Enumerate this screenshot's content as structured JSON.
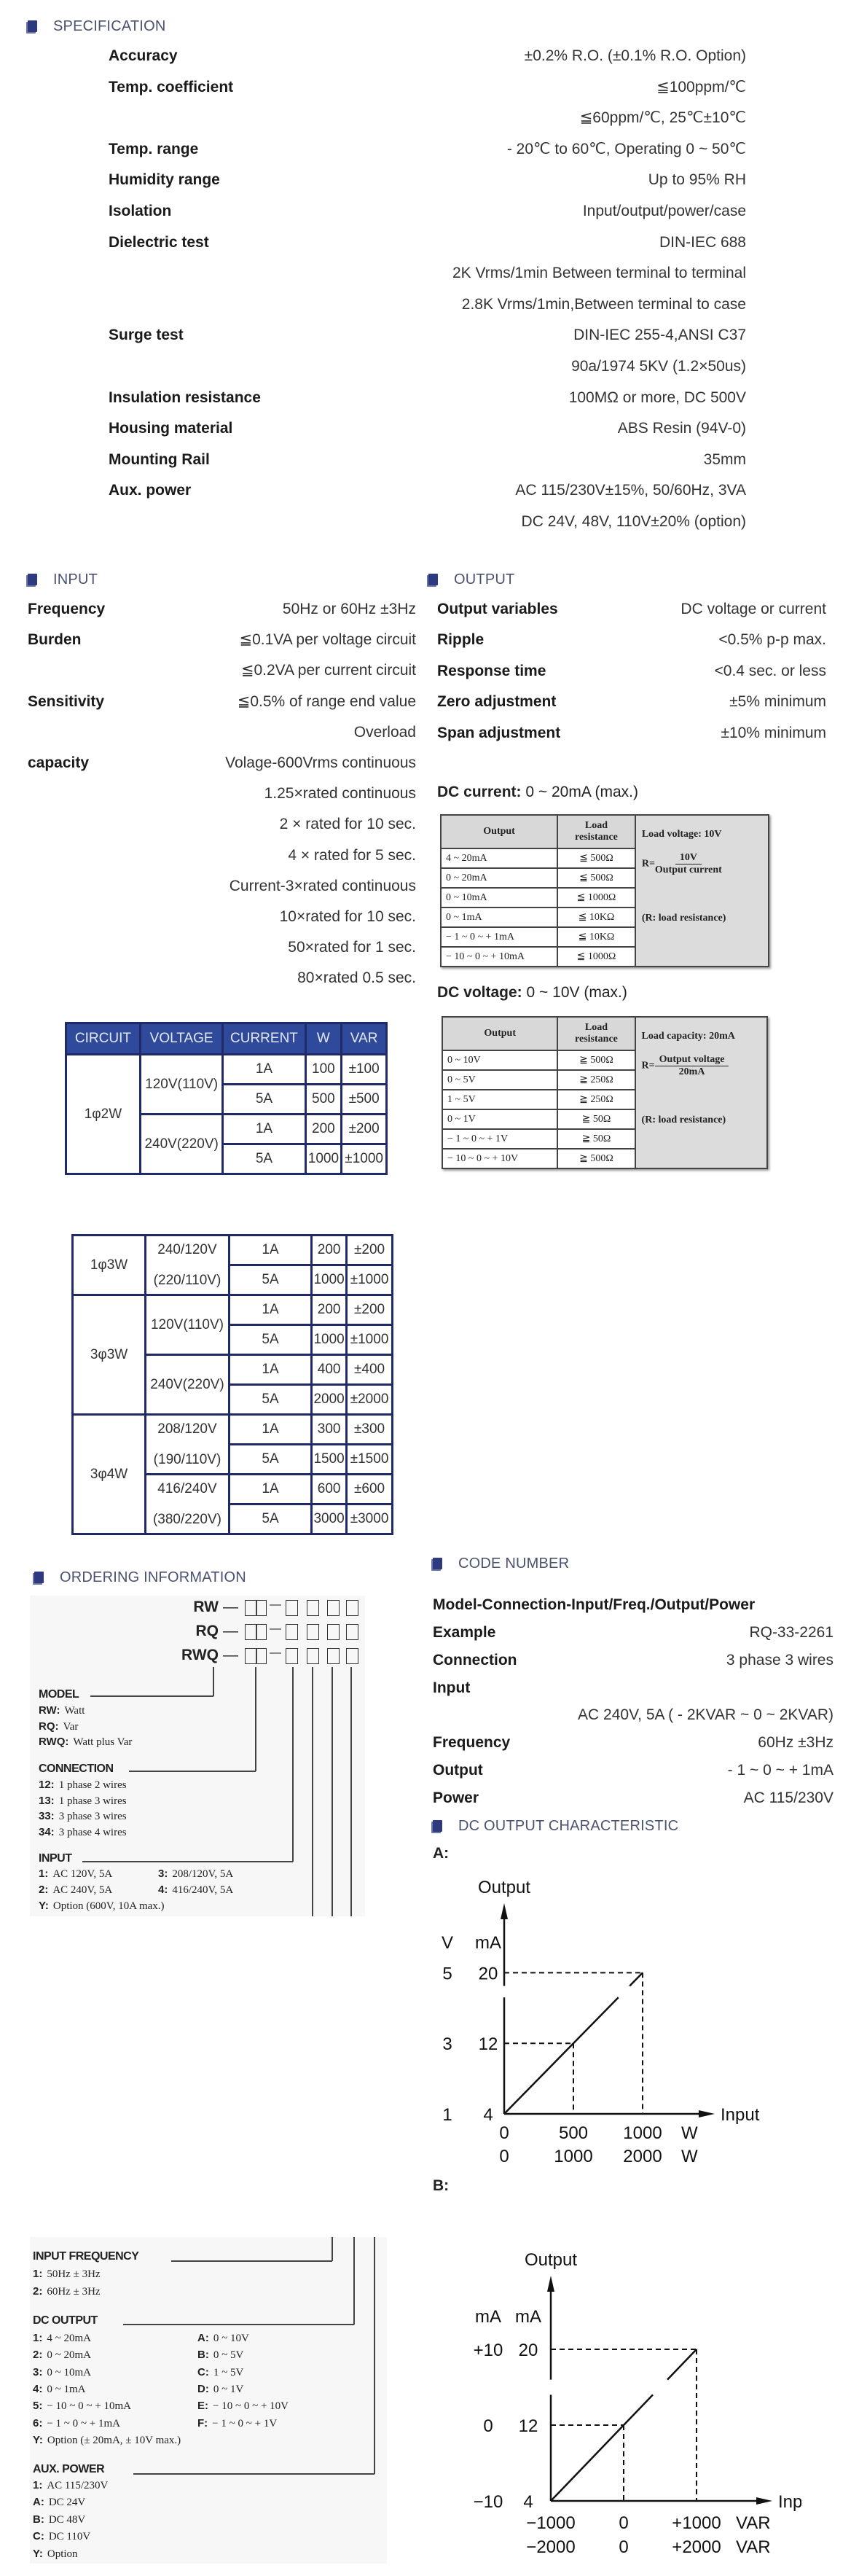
{
  "colors": {
    "heading": "#4a5270",
    "marker": "#2e3a80",
    "table_header": "#2f4a9a",
    "table_border": "#1f2a66"
  },
  "specification": {
    "title": "SPECIFICATION",
    "rows": [
      {
        "label": "Accuracy",
        "value": "±0.2% R.O. (±0.1% R.O. Option)"
      },
      {
        "label": "Temp. coefficient",
        "value": "≦100ppm/℃"
      },
      {
        "value": "≦60ppm/℃, 25℃±10℃"
      },
      {
        "label": "Temp. range",
        "value": "- 20℃ to 60℃, Operating 0 ~ 50℃"
      },
      {
        "label": "Humidity range",
        "value": "Up to 95% RH"
      },
      {
        "label": "Isolation",
        "value": "Input/output/power/case"
      },
      {
        "label": "Dielectric test",
        "value": "DIN-IEC 688"
      },
      {
        "value": "2K Vrms/1min Between terminal to terminal"
      },
      {
        "value": "2.8K Vrms/1min,Between terminal to case"
      },
      {
        "label": "Surge test",
        "value": "DIN-IEC 255-4,ANSI C37"
      },
      {
        "value": "90a/1974   5KV (1.2×50us)"
      },
      {
        "label": "Insulation resistance",
        "value": "100MΩ or more, DC 500V"
      },
      {
        "label": "Housing material",
        "value": "ABS Resin (94V-0)"
      },
      {
        "label": "Mounting Rail",
        "value": "35mm"
      },
      {
        "label": "Aux. power",
        "value": "AC 115/230V±15%, 50/60Hz, 3VA"
      },
      {
        "value": "DC 24V, 48V, 110V±20% (option)"
      }
    ]
  },
  "input": {
    "title": "INPUT",
    "rows": [
      {
        "label": "Frequency",
        "value": "50Hz or 60Hz ±3Hz"
      },
      {
        "label": "Burden",
        "value": "≦0.1VA per voltage circuit"
      },
      {
        "value": "≦0.2VA per current circuit"
      },
      {
        "label": "Sensitivity",
        "value": "≦0.5% of range end value"
      },
      {
        "value": "Overload"
      },
      {
        "label": "capacity",
        "value": "Volage-600Vrms continuous"
      },
      {
        "value": "1.25×rated continuous"
      },
      {
        "value": "2 × rated for 10 sec."
      },
      {
        "value": "4 × rated for 5 sec."
      },
      {
        "value": "Current-3×rated continuous"
      },
      {
        "value": "10×rated for 10 sec."
      },
      {
        "value": "50×rated for 1 sec."
      },
      {
        "value": "80×rated 0.5 sec."
      }
    ]
  },
  "output": {
    "title": "OUTPUT",
    "rows": [
      {
        "label": "Output variables",
        "value": "DC voltage or current"
      },
      {
        "label": "Ripple",
        "value": "<0.5% p-p max."
      },
      {
        "label": "Response time",
        "value": "<0.4 sec. or less"
      },
      {
        "label": "Zero adjustment",
        "value": "±5% minimum"
      },
      {
        "label": "Span adjustment",
        "value": "±10% minimum"
      }
    ],
    "dc_current": {
      "label": "DC current:",
      "range": "0 ~ 20mA (max.)",
      "headers": [
        "Output",
        "Load resistance"
      ],
      "rows": [
        [
          "4 ~ 20mA",
          "≦ 500Ω"
        ],
        [
          "0 ~ 20mA",
          "≦ 500Ω"
        ],
        [
          "0 ~ 10mA",
          "≦ 1000Ω"
        ],
        [
          "0 ~ 1mA",
          "≦ 10KΩ"
        ],
        [
          "− 1 ~ 0 ~ + 1mA",
          "≦ 10KΩ"
        ],
        [
          "− 10 ~ 0 ~ + 10mA",
          "≦ 1000Ω"
        ]
      ],
      "note_top": "Load voltage: 10V",
      "formula_lhs": "R=",
      "formula_num": "10V",
      "formula_den": "Output current",
      "note_bottom": "(R: load resistance)"
    },
    "dc_voltage": {
      "label": "DC voltage:",
      "range": "0 ~ 10V (max.)",
      "headers": [
        "Output",
        "Load resistance"
      ],
      "rows": [
        [
          "0 ~ 10V",
          "≧ 500Ω"
        ],
        [
          "0 ~ 5V",
          "≧ 250Ω"
        ],
        [
          "1 ~ 5V",
          "≧ 250Ω"
        ],
        [
          "0 ~ 1V",
          "≧ 50Ω"
        ],
        [
          "− 1 ~ 0 ~ + 1V",
          "≧ 50Ω"
        ],
        [
          "− 10 ~ 0 ~ + 10V",
          "≧ 500Ω"
        ]
      ],
      "note_top": "Load capacity: 20mA",
      "formula_lhs": "R=",
      "formula_num": "Output voltage",
      "formula_den": "20mA",
      "note_bottom": "(R: load resistance)"
    }
  },
  "circuit_table": {
    "headers": [
      "CIRCUIT",
      "VOLTAGE",
      "CURRENT",
      "W",
      "VAR"
    ],
    "groups": [
      {
        "circuit": "1φ2W",
        "voltages": [
          {
            "voltage": "120V(110V)",
            "rows": [
              {
                "current": "1A",
                "w": "100",
                "var": "±100"
              },
              {
                "current": "5A",
                "w": "500",
                "var": "±500"
              }
            ]
          },
          {
            "voltage": "240V(220V)",
            "rows": [
              {
                "current": "1A",
                "w": "200",
                "var": "±200"
              },
              {
                "current": "5A",
                "w": "1000",
                "var": "±1000"
              }
            ]
          }
        ]
      }
    ]
  },
  "circuit_table_2": {
    "groups": [
      {
        "circuit": "1φ3W",
        "voltages": [
          {
            "voltage": "240/120V",
            "voltage_alt": "(220/110V)",
            "rows": [
              {
                "current": "1A",
                "w": "200",
                "var": "±200"
              },
              {
                "current": "5A",
                "w": "1000",
                "var": "±1000"
              }
            ]
          }
        ]
      },
      {
        "circuit": "3φ3W",
        "voltages": [
          {
            "voltage": "120V(110V)",
            "rows": [
              {
                "current": "1A",
                "w": "200",
                "var": "±200"
              },
              {
                "current": "5A",
                "w": "1000",
                "var": "±1000"
              }
            ]
          },
          {
            "voltage": "240V(220V)",
            "rows": [
              {
                "current": "1A",
                "w": "400",
                "var": "±400"
              },
              {
                "current": "5A",
                "w": "2000",
                "var": "±2000"
              }
            ]
          }
        ]
      },
      {
        "circuit": "3φ4W",
        "voltages": [
          {
            "voltage": "208/120V",
            "voltage_alt": "(190/110V)",
            "rows": [
              {
                "current": "1A",
                "w": "300",
                "var": "±300"
              },
              {
                "current": "5A",
                "w": "1500",
                "var": "±1500"
              }
            ]
          },
          {
            "voltage": "416/240V",
            "voltage_alt": "(380/220V)",
            "rows": [
              {
                "current": "1A",
                "w": "600",
                "var": "±600"
              },
              {
                "current": "5A",
                "w": "3000",
                "var": "±3000"
              }
            ]
          }
        ]
      }
    ]
  },
  "ordering": {
    "title": "ORDERING INFORMATION",
    "models": [
      "RW",
      "RQ",
      "RWQ"
    ],
    "dash": "—",
    "model": {
      "title": "MODEL",
      "items": [
        {
          "k": "RW:",
          "v": "Watt"
        },
        {
          "k": "RQ:",
          "v": "Var"
        },
        {
          "k": "RWQ:",
          "v": "Watt plus Var"
        }
      ]
    },
    "connection": {
      "title": "CONNECTION",
      "items": [
        {
          "k": "12:",
          "v": "1 phase 2 wires"
        },
        {
          "k": "13:",
          "v": "1 phase 3 wires"
        },
        {
          "k": "33:",
          "v": "3 phase 3 wires"
        },
        {
          "k": "34:",
          "v": "3 phase 4 wires"
        }
      ]
    },
    "input": {
      "title": "INPUT",
      "items": [
        {
          "k": "1:",
          "v": "AC 120V, 5A"
        },
        {
          "k": "3:",
          "v": "208/120V, 5A"
        },
        {
          "k": "2:",
          "v": "AC 240V, 5A"
        },
        {
          "k": "4:",
          "v": "416/240V, 5A"
        },
        {
          "k": "Y:",
          "v": "Option (600V, 10A max.)"
        }
      ]
    },
    "input_frequency": {
      "title": "INPUT FREQUENCY",
      "items": [
        {
          "k": "1:",
          "v": "50Hz ± 3Hz"
        },
        {
          "k": "2:",
          "v": "60Hz ± 3Hz"
        }
      ]
    },
    "dc_output": {
      "title": "DC OUTPUT",
      "items": [
        {
          "k": "1:",
          "v": "4 ~ 20mA"
        },
        {
          "k": "A:",
          "v": "0 ~ 10V"
        },
        {
          "k": "2:",
          "v": "0 ~ 20mA"
        },
        {
          "k": "B:",
          "v": "0 ~ 5V"
        },
        {
          "k": "3:",
          "v": "0 ~ 10mA"
        },
        {
          "k": "C:",
          "v": "1 ~ 5V"
        },
        {
          "k": "4:",
          "v": "0 ~ 1mA"
        },
        {
          "k": "D:",
          "v": "0 ~ 1V"
        },
        {
          "k": "5:",
          "v": "− 10 ~ 0 ~ + 10mA"
        },
        {
          "k": "E:",
          "v": "− 10 ~ 0 ~ + 10V"
        },
        {
          "k": "6:",
          "v": "− 1 ~ 0 ~ + 1mA"
        },
        {
          "k": "F:",
          "v": "− 1 ~ 0 ~ + 1V"
        },
        {
          "k": "Y:",
          "v": "Option (± 20mA, ± 10V max.)"
        }
      ]
    },
    "aux_power": {
      "title": "AUX.  POWER",
      "items": [
        {
          "k": "1:",
          "v": "AC 115/230V"
        },
        {
          "k": "A:",
          "v": "DC 24V"
        },
        {
          "k": "B:",
          "v": "DC 48V"
        },
        {
          "k": "C:",
          "v": "DC 110V"
        },
        {
          "k": "Y:",
          "v": "Option"
        }
      ]
    }
  },
  "code_number": {
    "title": "CODE NUMBER",
    "format": "Model-Connection-Input/Freq./Output/Power",
    "rows": [
      {
        "label": "Example",
        "value": "RQ-33-2261"
      },
      {
        "label": "Connection",
        "value": "3 phase 3 wires"
      },
      {
        "label": "Input"
      },
      {
        "value": "AC 240V, 5A ( - 2KVAR ~ 0 ~ 2KVAR)"
      },
      {
        "label": "Frequency",
        "value": "60Hz ±3Hz"
      },
      {
        "label": "Output",
        "value": "- 1 ~ 0 ~ + 1mA"
      },
      {
        "label": "Power",
        "value": "AC 115/230V"
      }
    ]
  },
  "dc_output_characteristic": {
    "title": "DC OUTPUT CHARACTERISTIC"
  },
  "chart_data": [
    {
      "type": "line",
      "label": "A:",
      "y_label": "Output",
      "x_label": "Input",
      "y_units": [
        "V",
        "mA"
      ],
      "y_ticks": [
        4,
        12,
        20
      ],
      "y_tick_labels": [
        [
          "1",
          "3",
          "5"
        ],
        [
          "4",
          "12",
          "20"
        ]
      ],
      "x_unit": "W",
      "x_ticks": [
        0,
        500,
        1000
      ],
      "x_tick_labels": [
        [
          "0",
          "500",
          "1000"
        ],
        [
          "0",
          "1000",
          "2000"
        ]
      ],
      "points": [
        [
          0,
          4
        ],
        [
          1000,
          20
        ]
      ],
      "guides": [
        [
          500,
          12
        ],
        [
          1000,
          20
        ]
      ]
    },
    {
      "type": "line",
      "label": "B:",
      "y_label": "Output",
      "x_label": "Input",
      "y_units": [
        "mA",
        "mA"
      ],
      "y_ticks": [
        4,
        12,
        20
      ],
      "y_tick_labels": [
        [
          "−10",
          "0",
          "+10"
        ],
        [
          "4",
          "12",
          "20"
        ]
      ],
      "x_unit": "VAR",
      "x_ticks": [
        -1000,
        0,
        1000
      ],
      "x_tick_labels": [
        [
          "−1000",
          "0",
          "+1000"
        ],
        [
          "−2000",
          "0",
          "+2000"
        ]
      ],
      "points": [
        [
          -1000,
          4
        ],
        [
          1000,
          20
        ]
      ],
      "guides": [
        [
          0,
          12
        ],
        [
          1000,
          20
        ]
      ]
    }
  ]
}
